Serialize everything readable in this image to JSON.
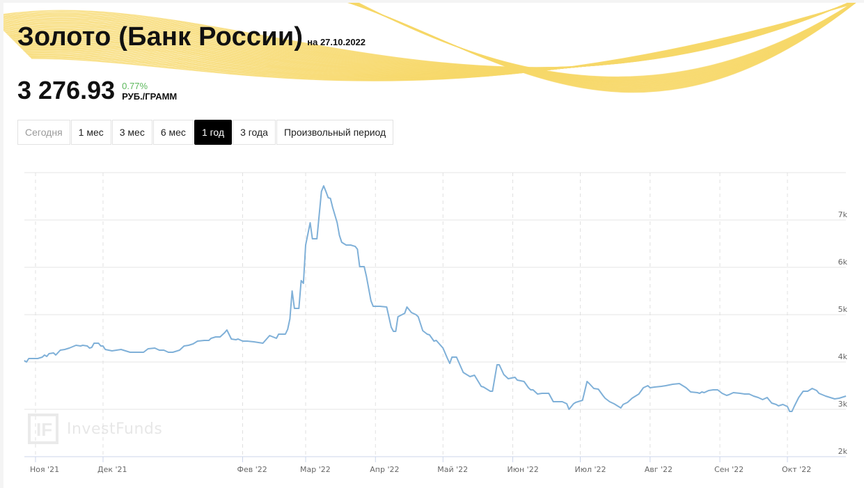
{
  "header": {
    "title": "Золото (Банк России)",
    "date_prefix": "на 27.10.2022",
    "price": "3 276.93",
    "change": "0.77%",
    "unit": "РУБ./ГРАММ"
  },
  "colors": {
    "accent_wave": "#f7d86a",
    "line": "#7fb0d8",
    "change_positive": "#5cb85c",
    "active_button_bg": "#000000",
    "grid": "#e4e4e4"
  },
  "period_buttons": [
    {
      "label": "Сегодня",
      "state": "muted"
    },
    {
      "label": "1 мес",
      "state": "normal"
    },
    {
      "label": "3 мес",
      "state": "normal"
    },
    {
      "label": "6 мес",
      "state": "normal"
    },
    {
      "label": "1 год",
      "state": "active"
    },
    {
      "label": "3 года",
      "state": "normal"
    },
    {
      "label": "Произвольный период",
      "state": "normal"
    }
  ],
  "watermark": {
    "logo": "IF",
    "text": "InvestFunds"
  },
  "chart_data": {
    "type": "line",
    "title": "Золото (Банк России)",
    "xlabel": "",
    "ylabel": "РУБ./ГРАММ",
    "ylim": [
      2000,
      8000
    ],
    "grid": true,
    "legend": null,
    "y_ticks": [
      {
        "value": 2000,
        "label": "2k"
      },
      {
        "value": 3000,
        "label": "3k"
      },
      {
        "value": 4000,
        "label": "4k"
      },
      {
        "value": 5000,
        "label": "5k"
      },
      {
        "value": 6000,
        "label": "6k"
      },
      {
        "value": 7000,
        "label": "7k"
      }
    ],
    "x_ticks": [
      {
        "day": 0,
        "label": "Ноя '21"
      },
      {
        "day": 30,
        "label": "Дек '21"
      },
      {
        "day": 92,
        "label": "Фев '22"
      },
      {
        "day": 120,
        "label": "Мар '22"
      },
      {
        "day": 151,
        "label": "Апр '22"
      },
      {
        "day": 181,
        "label": "Май '22"
      },
      {
        "day": 212,
        "label": "Июн '22"
      },
      {
        "day": 242,
        "label": "Июл '22"
      },
      {
        "day": 273,
        "label": "Авг '22"
      },
      {
        "day": 304,
        "label": "Сен '22"
      },
      {
        "day": 334,
        "label": "Окт '22"
      }
    ],
    "x_range_days": [
      -5,
      360
    ],
    "series": [
      {
        "name": "Золото, руб./грамм",
        "points": [
          [
            -5,
            4029
          ],
          [
            -4,
            4000
          ],
          [
            -3,
            4074
          ],
          [
            -1,
            4074
          ],
          [
            1,
            4074
          ],
          [
            3,
            4103
          ],
          [
            4,
            4147
          ],
          [
            5,
            4118
          ],
          [
            6,
            4176
          ],
          [
            8,
            4191
          ],
          [
            9,
            4147
          ],
          [
            11,
            4250
          ],
          [
            13,
            4265
          ],
          [
            15,
            4294
          ],
          [
            18,
            4353
          ],
          [
            20,
            4338
          ],
          [
            21,
            4353
          ],
          [
            23,
            4338
          ],
          [
            24,
            4294
          ],
          [
            25,
            4309
          ],
          [
            26,
            4397
          ],
          [
            28,
            4397
          ],
          [
            29,
            4338
          ],
          [
            30,
            4338
          ],
          [
            31,
            4265
          ],
          [
            34,
            4235
          ],
          [
            36,
            4250
          ],
          [
            38,
            4265
          ],
          [
            40,
            4235
          ],
          [
            42,
            4206
          ],
          [
            46,
            4206
          ],
          [
            48,
            4206
          ],
          [
            50,
            4279
          ],
          [
            53,
            4294
          ],
          [
            55,
            4250
          ],
          [
            57,
            4250
          ],
          [
            59,
            4206
          ],
          [
            61,
            4206
          ],
          [
            64,
            4250
          ],
          [
            66,
            4338
          ],
          [
            68,
            4353
          ],
          [
            70,
            4382
          ],
          [
            72,
            4441
          ],
          [
            75,
            4456
          ],
          [
            77,
            4456
          ],
          [
            78,
            4500
          ],
          [
            80,
            4529
          ],
          [
            82,
            4529
          ],
          [
            84,
            4618
          ],
          [
            85,
            4676
          ],
          [
            87,
            4485
          ],
          [
            89,
            4471
          ],
          [
            90,
            4485
          ],
          [
            92,
            4441
          ],
          [
            94,
            4441
          ],
          [
            97,
            4426
          ],
          [
            99,
            4412
          ],
          [
            101,
            4397
          ],
          [
            104,
            4559
          ],
          [
            107,
            4500
          ],
          [
            108,
            4588
          ],
          [
            111,
            4588
          ],
          [
            112,
            4691
          ],
          [
            113,
            4912
          ],
          [
            114,
            5500
          ],
          [
            115,
            5132
          ],
          [
            117,
            5132
          ],
          [
            118,
            5721
          ],
          [
            119,
            5662
          ],
          [
            120,
            6471
          ],
          [
            122,
            6941
          ],
          [
            123,
            6603
          ],
          [
            125,
            6603
          ],
          [
            127,
            7603
          ],
          [
            128,
            7721
          ],
          [
            129,
            7603
          ],
          [
            130,
            7471
          ],
          [
            131,
            7456
          ],
          [
            132,
            7265
          ],
          [
            134,
            6941
          ],
          [
            135,
            6676
          ],
          [
            136,
            6529
          ],
          [
            138,
            6471
          ],
          [
            140,
            6471
          ],
          [
            142,
            6441
          ],
          [
            143,
            6382
          ],
          [
            144,
            6015
          ],
          [
            146,
            6015
          ],
          [
            147,
            5809
          ],
          [
            149,
            5294
          ],
          [
            150,
            5176
          ],
          [
            153,
            5176
          ],
          [
            156,
            5162
          ],
          [
            158,
            4735
          ],
          [
            159,
            4647
          ],
          [
            160,
            4647
          ],
          [
            161,
            4956
          ],
          [
            164,
            5029
          ],
          [
            165,
            5162
          ],
          [
            167,
            5044
          ],
          [
            169,
            5000
          ],
          [
            170,
            4956
          ],
          [
            172,
            4662
          ],
          [
            174,
            4588
          ],
          [
            175,
            4574
          ],
          [
            177,
            4441
          ],
          [
            178,
            4456
          ],
          [
            181,
            4294
          ],
          [
            183,
            4074
          ],
          [
            184,
            3971
          ],
          [
            185,
            4103
          ],
          [
            187,
            4103
          ],
          [
            190,
            3779
          ],
          [
            191,
            3750
          ],
          [
            193,
            3691
          ],
          [
            195,
            3721
          ],
          [
            198,
            3485
          ],
          [
            199,
            3471
          ],
          [
            202,
            3382
          ],
          [
            203,
            3382
          ],
          [
            205,
            3941
          ],
          [
            206,
            3941
          ],
          [
            208,
            3735
          ],
          [
            210,
            3647
          ],
          [
            213,
            3676
          ],
          [
            214,
            3618
          ],
          [
            217,
            3588
          ],
          [
            219,
            3456
          ],
          [
            220,
            3412
          ],
          [
            221,
            3412
          ],
          [
            223,
            3324
          ],
          [
            225,
            3338
          ],
          [
            228,
            3338
          ],
          [
            230,
            3162
          ],
          [
            231,
            3162
          ],
          [
            234,
            3162
          ],
          [
            236,
            3118
          ],
          [
            237,
            3000
          ],
          [
            239,
            3118
          ],
          [
            240,
            3147
          ],
          [
            243,
            3191
          ],
          [
            245,
            3588
          ],
          [
            246,
            3544
          ],
          [
            248,
            3441
          ],
          [
            250,
            3426
          ],
          [
            252,
            3294
          ],
          [
            253,
            3235
          ],
          [
            255,
            3162
          ],
          [
            257,
            3118
          ],
          [
            260,
            3029
          ],
          [
            261,
            3103
          ],
          [
            263,
            3147
          ],
          [
            265,
            3235
          ],
          [
            266,
            3265
          ],
          [
            268,
            3324
          ],
          [
            270,
            3456
          ],
          [
            272,
            3500
          ],
          [
            273,
            3456
          ],
          [
            275,
            3471
          ],
          [
            278,
            3485
          ],
          [
            280,
            3500
          ],
          [
            283,
            3529
          ],
          [
            286,
            3544
          ],
          [
            289,
            3456
          ],
          [
            291,
            3368
          ],
          [
            294,
            3353
          ],
          [
            295,
            3338
          ],
          [
            296,
            3368
          ],
          [
            297,
            3353
          ],
          [
            299,
            3397
          ],
          [
            301,
            3412
          ],
          [
            303,
            3412
          ],
          [
            305,
            3338
          ],
          [
            307,
            3294
          ],
          [
            308,
            3309
          ],
          [
            310,
            3353
          ],
          [
            313,
            3338
          ],
          [
            315,
            3324
          ],
          [
            317,
            3324
          ],
          [
            319,
            3279
          ],
          [
            321,
            3250
          ],
          [
            323,
            3206
          ],
          [
            325,
            3250
          ],
          [
            327,
            3132
          ],
          [
            329,
            3103
          ],
          [
            330,
            3074
          ],
          [
            332,
            3103
          ],
          [
            334,
            3059
          ],
          [
            335,
            2956
          ],
          [
            336,
            2956
          ],
          [
            337,
            3059
          ],
          [
            339,
            3250
          ],
          [
            341,
            3382
          ],
          [
            343,
            3382
          ],
          [
            345,
            3441
          ],
          [
            347,
            3397
          ],
          [
            348,
            3338
          ],
          [
            351,
            3279
          ],
          [
            353,
            3250
          ],
          [
            355,
            3221
          ],
          [
            357,
            3235
          ],
          [
            360,
            3279
          ]
        ]
      }
    ]
  }
}
